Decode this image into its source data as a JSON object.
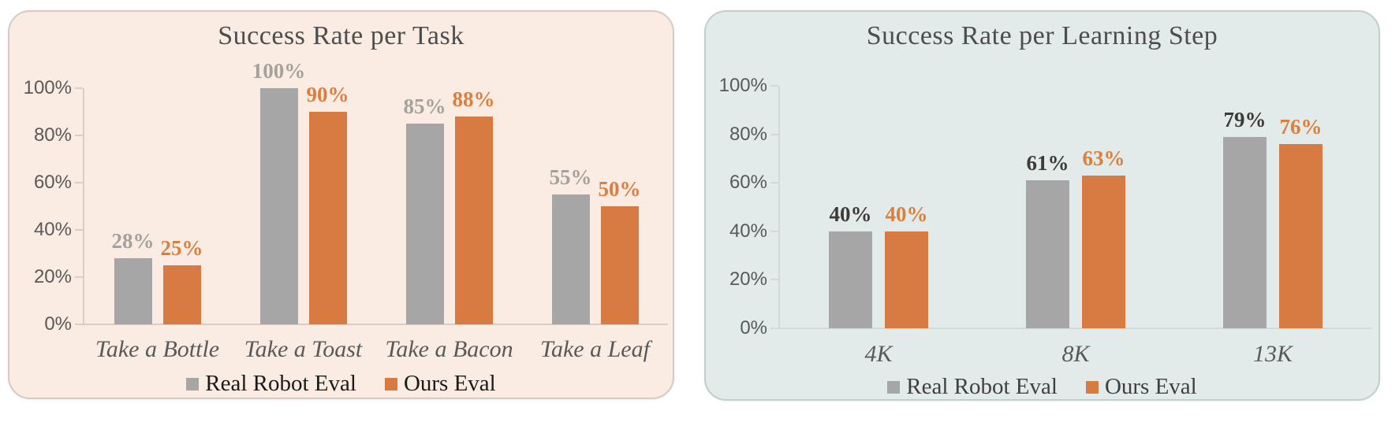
{
  "page": {
    "background": "#ffffff"
  },
  "chart_data": [
    {
      "type": "bar",
      "title": "Success Rate per Task",
      "title_color": "#4d4d4d",
      "panel_bg": "#faece3",
      "panel_border": "#d4cbc4",
      "axis_color": "#d9cec5",
      "tick_label_color": "#595959",
      "x_label_color": "#595959",
      "legend_text_color": "#1a1a1a",
      "legend_position": "bottom",
      "grid": false,
      "xlabel": "",
      "ylabel": "",
      "ylim": [
        0,
        100
      ],
      "y_ticks": [
        "0%",
        "20%",
        "40%",
        "60%",
        "80%",
        "100%"
      ],
      "categories": [
        "Take a Bottle",
        "Take a Toast",
        "Take a Bacon",
        "Take a Leaf"
      ],
      "series": [
        {
          "name": "Real Robot Eval",
          "color": "#a6a6a6",
          "label_color": "#a5a19c",
          "values": [
            28,
            100,
            85,
            55
          ],
          "labels": [
            "28%",
            "100%",
            "85%",
            "55%"
          ]
        },
        {
          "name": "Ours Eval",
          "color": "#d87b43",
          "label_color": "#dc7e3d",
          "values": [
            25,
            90,
            88,
            50
          ],
          "labels": [
            "25%",
            "90%",
            "88%",
            "50%"
          ]
        }
      ]
    },
    {
      "type": "bar",
      "title": "Success Rate per Learning Step",
      "title_color": "#4d4d4d",
      "panel_bg": "#e2ebe9",
      "panel_border": "#c2cecc",
      "axis_color": "#cfdbd8",
      "tick_label_color": "#595959",
      "x_label_color": "#595959",
      "legend_text_color": "#3f3f3f",
      "legend_position": "bottom",
      "grid": false,
      "xlabel": "",
      "ylabel": "",
      "ylim": [
        0,
        100
      ],
      "y_ticks": [
        "0%",
        "20%",
        "40%",
        "60%",
        "80%",
        "100%"
      ],
      "categories": [
        "4K",
        "8K",
        "13K"
      ],
      "series": [
        {
          "name": "Real Robot Eval",
          "color": "#a6a6a6",
          "label_color": "#3d3b38",
          "values": [
            40,
            61,
            79
          ],
          "labels": [
            "40%",
            "61%",
            "79%"
          ]
        },
        {
          "name": "Ours Eval",
          "color": "#d87b43",
          "label_color": "#dc7e3d",
          "values": [
            40,
            63,
            76
          ],
          "labels": [
            "40%",
            "63%",
            "76%"
          ]
        }
      ]
    }
  ]
}
